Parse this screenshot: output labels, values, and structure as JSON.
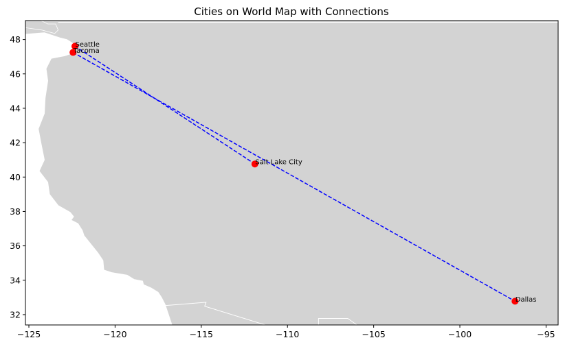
{
  "chart_data": {
    "type": "scatter",
    "title": "Cities on World Map with Connections",
    "xlabel": "",
    "ylabel": "",
    "xlim": [
      -125.2,
      -94.3
    ],
    "ylim": [
      31.4,
      49.1
    ],
    "xticks": [
      -125,
      -120,
      -115,
      -110,
      -105,
      -100,
      -95
    ],
    "yticks": [
      32,
      34,
      36,
      38,
      40,
      42,
      44,
      46,
      48
    ],
    "grid": false,
    "legend": "none",
    "background_map": "world land polygons (light gray)",
    "cities": [
      {
        "name": "Seattle",
        "lon": -122.33,
        "lat": 47.61
      },
      {
        "name": "Tacoma",
        "lon": -122.44,
        "lat": 47.25
      },
      {
        "name": "Salt Lake City",
        "lon": -111.89,
        "lat": 40.76
      },
      {
        "name": "Dallas",
        "lon": -96.8,
        "lat": 32.78
      }
    ],
    "connections": [
      {
        "from": "Seattle",
        "to": "Salt Lake City"
      },
      {
        "from": "Tacoma",
        "to": "Dallas"
      }
    ],
    "colors": {
      "land": "#d3d3d3",
      "land_border": "#ffffff",
      "marker": "#ff0000",
      "connection_line": "#0000ff"
    },
    "line_style": "dashed"
  }
}
